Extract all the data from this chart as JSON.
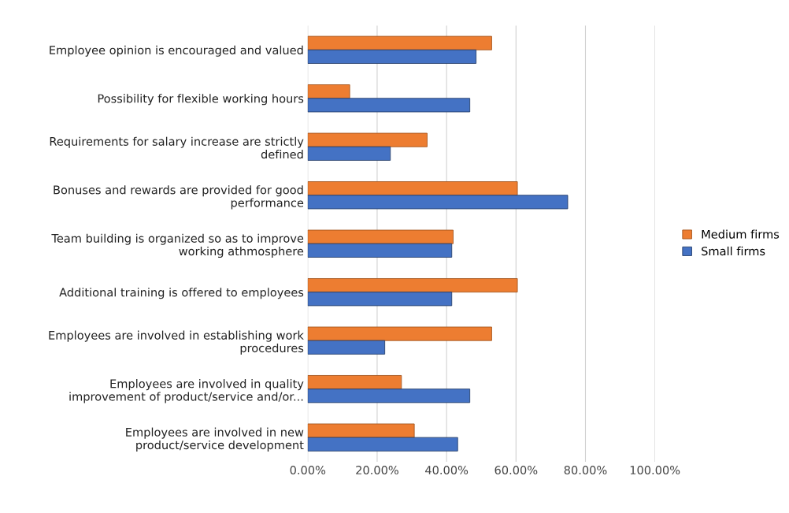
{
  "chart_data": {
    "type": "bar",
    "orientation": "horizontal",
    "categories": [
      "Employee opinion is encouraged and valued",
      "Possibility for flexible working hours",
      "Requirements for salary increase are strictly\ndefined",
      "Bonuses and rewards are provided for good\nperformance",
      "Team building is organized so as to improve\nworking athmosphere",
      "Additional training is offered to employees",
      "Employees are involved in establishing work\nprocedures",
      "Employees are involved in quality\nimprovement of product/service and/or...",
      "Employees are involved in new\nproduct/service development"
    ],
    "series": [
      {
        "name": "Medium firms",
        "color": "#ed7d31",
        "values": [
          53.0,
          12.1,
          34.4,
          60.4,
          41.9,
          60.4,
          53.0,
          27.0,
          30.7
        ]
      },
      {
        "name": "Small firms",
        "color": "#4472c4",
        "values": [
          48.5,
          46.7,
          23.8,
          74.9,
          41.5,
          41.5,
          22.2,
          46.7,
          43.2
        ]
      }
    ],
    "xlim": [
      0,
      100
    ],
    "xticks": [
      {
        "value": 0,
        "label": "0.00%"
      },
      {
        "value": 20,
        "label": "20.00%"
      },
      {
        "value": 40,
        "label": "40.00%"
      },
      {
        "value": 60,
        "label": "60.00%"
      },
      {
        "value": 80,
        "label": "80.00%"
      },
      {
        "value": 100,
        "label": "100.00%"
      }
    ],
    "grid": "x",
    "legend": "right"
  }
}
